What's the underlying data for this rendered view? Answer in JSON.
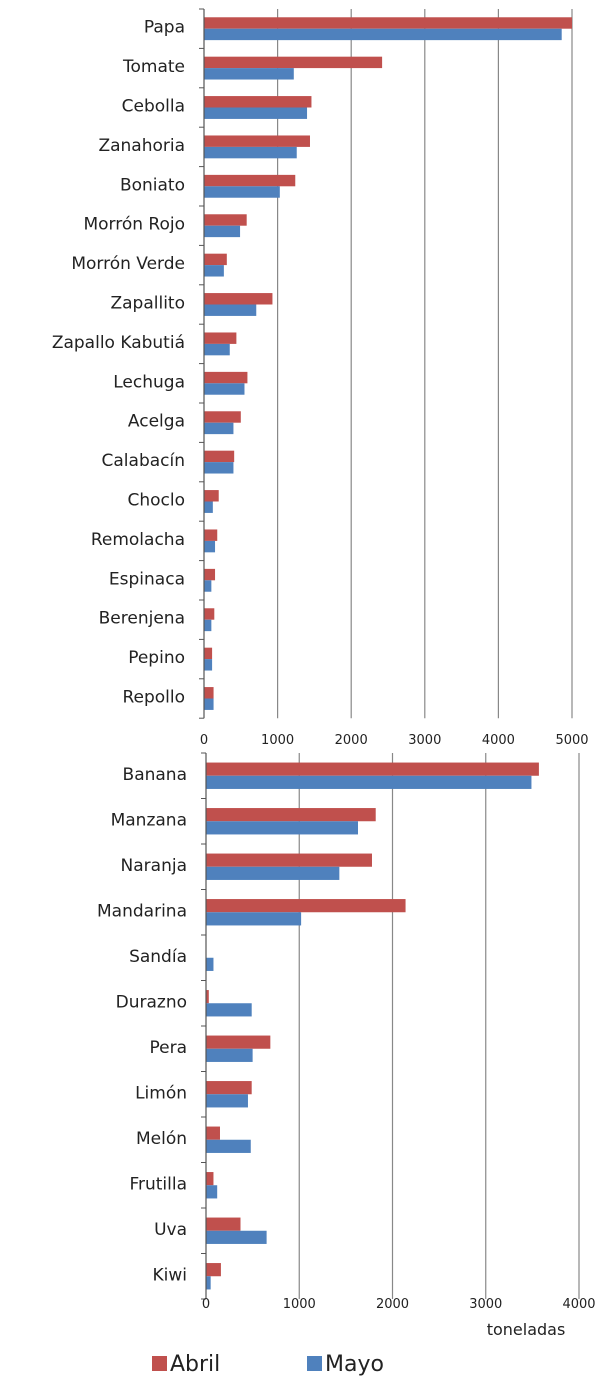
{
  "colors": {
    "abril": "#c0504d",
    "mayo": "#4f81bd",
    "grid": "#888888"
  },
  "legend": {
    "abril": "Abril",
    "mayo": "Mayo"
  },
  "unit_label": "toneladas",
  "chart_data": [
    {
      "type": "bar",
      "orientation": "horizontal",
      "categories": [
        "Papa",
        "Tomate",
        "Cebolla",
        "Zanahoria",
        "Boniato",
        "Morrón Rojo",
        "Morrón Verde",
        "Zapallito",
        "Zapallo Kabutiá",
        "Lechuga",
        "Acelga",
        "Calabacín",
        "Choclo",
        "Remolacha",
        "Espinaca",
        "Berenjena",
        "Pepino",
        "Repollo"
      ],
      "series": [
        {
          "name": "Abril",
          "values": [
            5000,
            2420,
            1460,
            1440,
            1240,
            580,
            310,
            930,
            440,
            590,
            500,
            410,
            200,
            180,
            150,
            140,
            110,
            130
          ]
        },
        {
          "name": "Mayo",
          "values": [
            4860,
            1220,
            1400,
            1260,
            1030,
            490,
            270,
            710,
            350,
            550,
            400,
            400,
            120,
            150,
            100,
            100,
            110,
            130
          ]
        }
      ],
      "xlim": [
        0,
        5000
      ],
      "ticks": [
        "0",
        "1000",
        "2000",
        "3000",
        "4000",
        "5000"
      ],
      "grid": true
    },
    {
      "type": "bar",
      "orientation": "horizontal",
      "categories": [
        "Banana",
        "Manzana",
        "Naranja",
        "Mandarina",
        "Sandía",
        "Durazno",
        "Pera",
        "Limón",
        "Melón",
        "Frutilla",
        "Uva",
        "Kiwi"
      ],
      "series": [
        {
          "name": "Abril",
          "values": [
            3570,
            1820,
            1780,
            2140,
            0,
            30,
            690,
            490,
            150,
            80,
            370,
            160
          ]
        },
        {
          "name": "Mayo",
          "values": [
            3490,
            1630,
            1430,
            1020,
            80,
            490,
            500,
            450,
            480,
            120,
            650,
            50
          ]
        }
      ],
      "xlim": [
        0,
        4000
      ],
      "ticks": [
        "0",
        "1000",
        "2000",
        "3000",
        "4000"
      ],
      "xlabel": "toneladas",
      "grid": true
    }
  ]
}
